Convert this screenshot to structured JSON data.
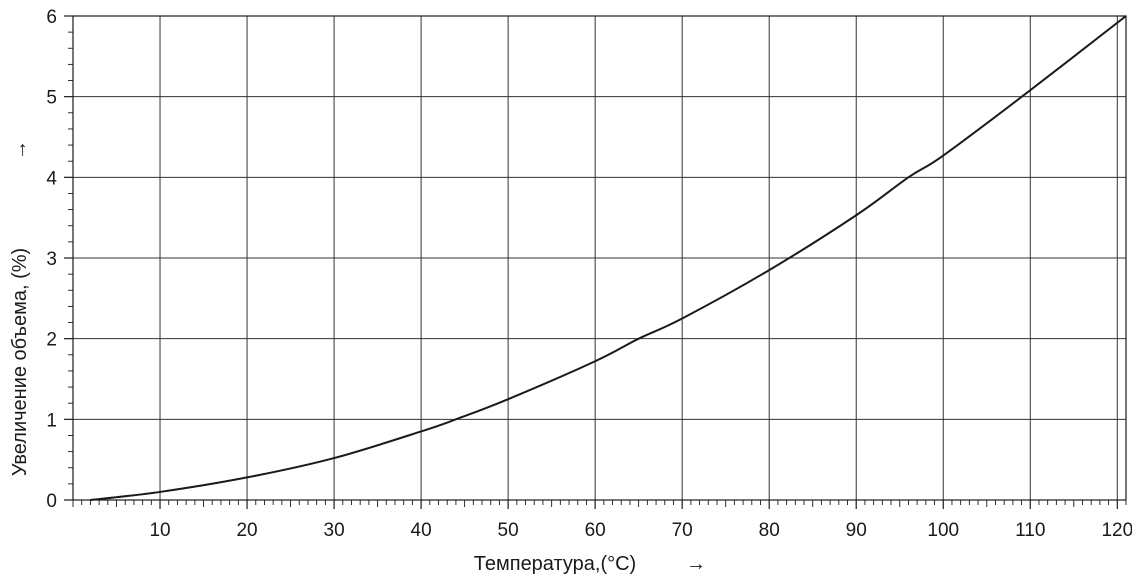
{
  "chart_data": {
    "type": "line",
    "xlabel": "Температура,(°C)",
    "ylabel": "Увеличение объема, (%)",
    "x_arrow": "→",
    "y_arrow": "→",
    "xlim": [
      0,
      121
    ],
    "ylim": [
      0,
      6
    ],
    "x_ticks": [
      10,
      20,
      30,
      40,
      50,
      60,
      70,
      80,
      90,
      100,
      110,
      120
    ],
    "y_ticks": [
      0,
      1,
      2,
      3,
      4,
      5,
      6
    ],
    "x_minor_step": 1,
    "y_minor_step": 0.2,
    "grid": true,
    "series": [
      {
        "x": [
          2,
          10,
          20,
          30,
          40,
          44,
          50,
          60,
          65,
          70,
          80,
          90,
          96,
          100,
          110,
          121
        ],
        "y": [
          0.0,
          0.1,
          0.28,
          0.52,
          0.85,
          1.0,
          1.25,
          1.72,
          2.0,
          2.25,
          2.85,
          3.53,
          4.0,
          4.27,
          5.08,
          6.0
        ]
      }
    ],
    "colors": {
      "line": "#1a1a1a",
      "grid": "#333333",
      "text": "#1a1a1a"
    }
  }
}
